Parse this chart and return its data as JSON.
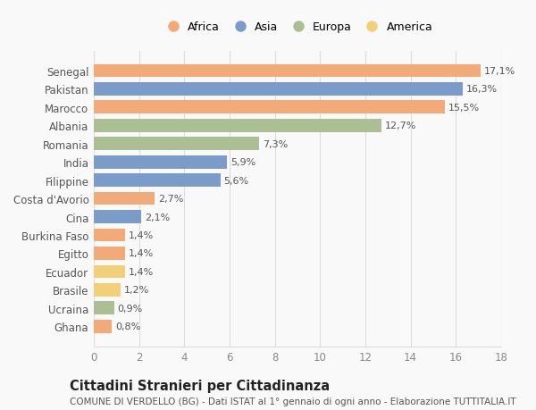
{
  "countries": [
    "Ghana",
    "Ucraina",
    "Brasile",
    "Ecuador",
    "Egitto",
    "Burkina Faso",
    "Cina",
    "Costa d'Avorio",
    "Filippine",
    "India",
    "Romania",
    "Albania",
    "Marocco",
    "Pakistan",
    "Senegal"
  ],
  "values": [
    0.8,
    0.9,
    1.2,
    1.4,
    1.4,
    1.4,
    2.1,
    2.7,
    5.6,
    5.9,
    7.3,
    12.7,
    15.5,
    16.3,
    17.1
  ],
  "continents": [
    "Africa",
    "Europa",
    "America",
    "America",
    "Africa",
    "Africa",
    "Asia",
    "Africa",
    "Asia",
    "Asia",
    "Europa",
    "Europa",
    "Africa",
    "Asia",
    "Africa"
  ],
  "labels": [
    "0,8%",
    "0,9%",
    "1,2%",
    "1,4%",
    "1,4%",
    "1,4%",
    "2,1%",
    "2,7%",
    "5,6%",
    "5,9%",
    "7,3%",
    "12,7%",
    "15,5%",
    "16,3%",
    "17,1%"
  ],
  "colors": {
    "Africa": "#F2AA78",
    "Asia": "#7B9CC8",
    "Europa": "#ABBE94",
    "America": "#F2D07A"
  },
  "legend_order": [
    "Africa",
    "Asia",
    "Europa",
    "America"
  ],
  "legend_colors": [
    "#F2AA78",
    "#7B9CC8",
    "#ABBE94",
    "#F2D07A"
  ],
  "title": "Cittadini Stranieri per Cittadinanza",
  "subtitle": "COMUNE DI VERDELLO (BG) - Dati ISTAT al 1° gennaio di ogni anno - Elaborazione TUTTITALIA.IT",
  "xlim": [
    0,
    18
  ],
  "xticks": [
    0,
    2,
    4,
    6,
    8,
    10,
    12,
    14,
    16,
    18
  ],
  "background_color": "#f9f9f9",
  "grid_color": "#dddddd",
  "bar_height": 0.72,
  "label_fontsize": 8.0,
  "tick_fontsize": 8.5,
  "ytick_fontsize": 8.5,
  "title_fontsize": 10.5,
  "subtitle_fontsize": 7.5
}
